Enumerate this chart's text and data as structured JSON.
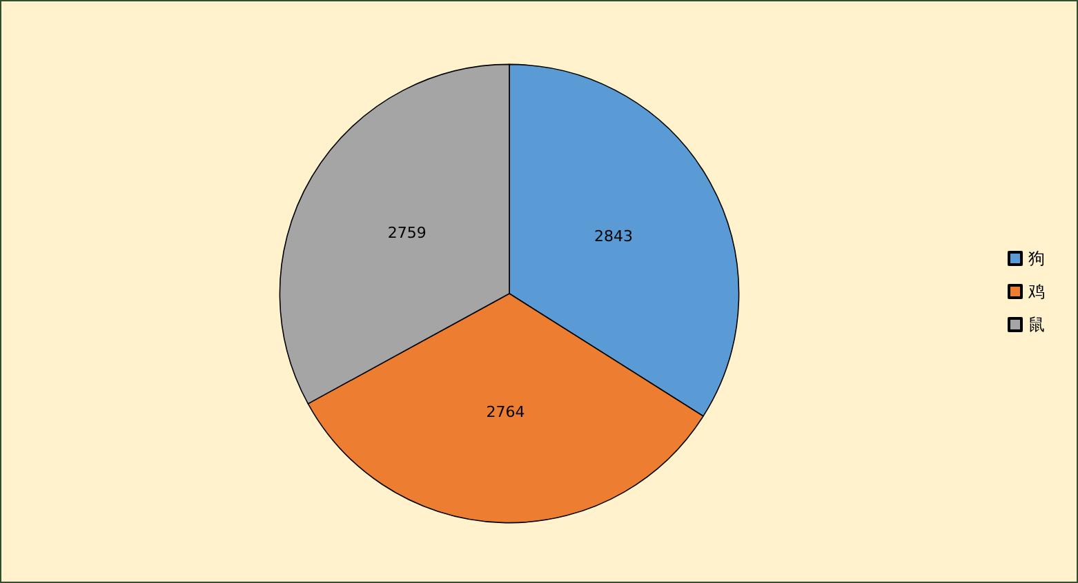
{
  "chart_data": {
    "type": "pie",
    "categories": [
      "狗",
      "鸡",
      "鼠"
    ],
    "values": [
      2843,
      2764,
      2759
    ],
    "colors": [
      "#5b9bd5",
      "#ed7d31",
      "#a5a5a5"
    ],
    "data_labels": true,
    "legend": "right"
  }
}
